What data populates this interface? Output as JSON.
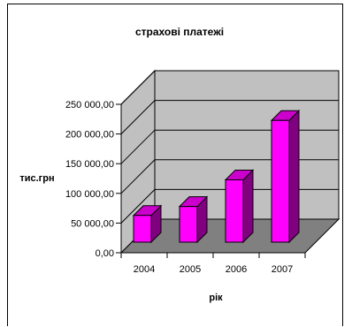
{
  "chart_data": {
    "type": "bar",
    "title": "страхові платежі",
    "xlabel": "рік",
    "ylabel": "тис.грн",
    "categories": [
      "2004",
      "2005",
      "2006",
      "2007"
    ],
    "values": [
      45000,
      60000,
      105000,
      205000
    ],
    "ylim": [
      0,
      250000
    ],
    "yticks": [
      "0,00",
      "50 000,00",
      "100 000,00",
      "150 000,00",
      "200 000,00",
      "250 000,00"
    ],
    "grid": true,
    "colors": {
      "bar_front": "#ff00ff",
      "bar_side": "#800080",
      "bar_top": "#cc00cc",
      "back_wall": "#c0c0c0",
      "side_wall": "#c0c0c0",
      "floor": "#808080",
      "grid": "#000000"
    }
  }
}
